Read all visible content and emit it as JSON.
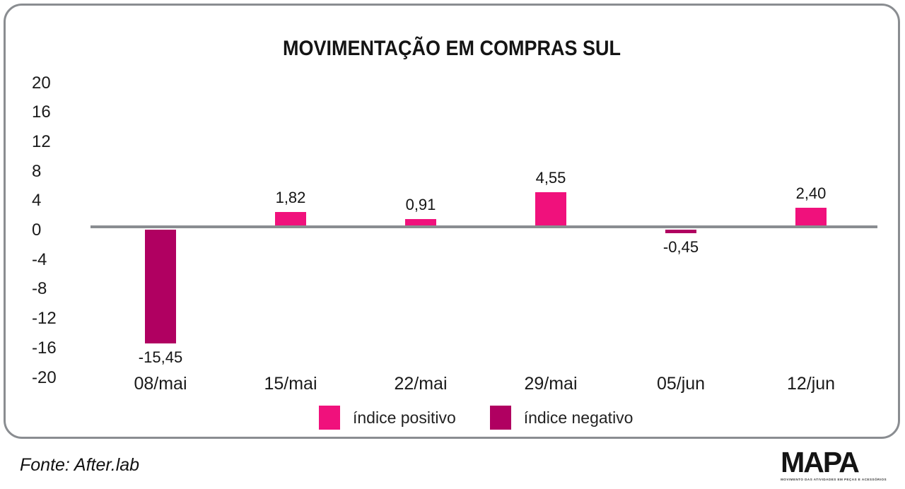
{
  "chart_data": {
    "type": "bar",
    "title": "MOVIMENTAÇÃO EM COMPRAS SUL",
    "categories": [
      "08/mai",
      "15/mai",
      "22/mai",
      "29/mai",
      "05/jun",
      "12/jun"
    ],
    "values": [
      -15.45,
      1.82,
      0.91,
      4.55,
      -0.45,
      2.4
    ],
    "value_labels": [
      "-15,45",
      "1,82",
      "0,91",
      "4,55",
      "-0,45",
      "2,40"
    ],
    "y_ticks": [
      20,
      16,
      12,
      8,
      4,
      0,
      -4,
      -8,
      -12,
      -16,
      -20
    ],
    "ylim": [
      -20,
      20
    ],
    "xlabel": "",
    "ylabel": "",
    "grid": false,
    "legend_position": "bottom",
    "legend": [
      {
        "label": "índice positivo",
        "color": "#F0117C"
      },
      {
        "label": "índice negativo",
        "color": "#B00061"
      }
    ],
    "colors": {
      "positive": "#F0117C",
      "negative": "#B00061",
      "axis": "#8a8d91"
    }
  },
  "footer": {
    "source": "Fonte: After.lab"
  },
  "logo": {
    "name": "MAPA",
    "tagline": "MOVIMENTO DAS ATIVIDADES EM PEÇAS E ACESSÓRIOS"
  }
}
